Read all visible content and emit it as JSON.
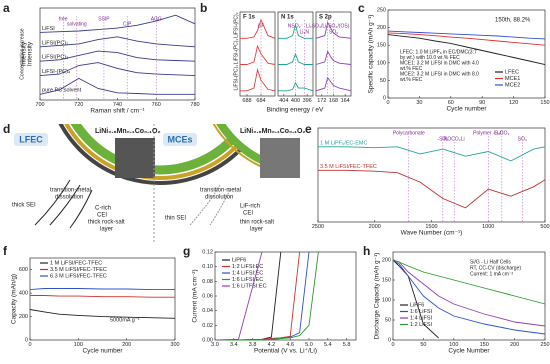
{
  "panels": [
    {
      "label": "a",
      "xlabel": "Raman shift / cm⁻¹",
      "ylabel": "Intensity",
      "ylabel2": "Concentration increase",
      "xlim": [
        700,
        780
      ],
      "xticks": [
        700,
        720,
        740,
        760,
        780
      ],
      "ylim": [
        0,
        6.4
      ],
      "x": [
        700,
        710,
        720,
        730,
        740,
        750,
        760,
        770,
        780
      ],
      "series": [
        {
          "name": "LiFSI",
          "color": "#3a3a8c",
          "values": [
            4.7,
            4.75,
            4.8,
            4.9,
            5.0,
            5.2,
            5.5,
            5.9,
            5.3
          ]
        },
        {
          "name": "LiFSI(PC)₂",
          "color": "#3a3a8c",
          "values": [
            3.7,
            3.8,
            3.9,
            4.2,
            4.4,
            4.1,
            3.9,
            3.8,
            3.7
          ]
        },
        {
          "name": "LiFSI(PC)₃",
          "color": "#3a3a8c",
          "values": [
            2.7,
            2.8,
            3.1,
            3.4,
            3.3,
            2.95,
            2.8,
            2.75,
            2.7
          ]
        },
        {
          "name": "LiFSI-(PC)₄",
          "color": "#3a3a8c",
          "values": [
            1.7,
            1.8,
            2.4,
            2.6,
            2.2,
            1.9,
            1.8,
            1.75,
            1.7
          ]
        },
        {
          "name": "pure PC solvent",
          "color": "#3a3a8c",
          "values": [
            0.4,
            0.7,
            1.5,
            0.8,
            0.5,
            0.45,
            0.4,
            0.4,
            0.4
          ]
        }
      ],
      "annotations": [
        {
          "text": "free",
          "x": 712
        },
        {
          "text": "solvating",
          "x": 719
        },
        {
          "text": "SSIP",
          "x": 733
        },
        {
          "text": "CIP",
          "x": 745
        },
        {
          "text": "AGG",
          "x": 760
        }
      ]
    },
    {
      "label": "b",
      "xlabel": "Binding energy / eV",
      "rows": [
        "LiFSI-(PC)₂",
        "LiFSI-(PC)₃",
        "LiFSI-(PC)₄"
      ],
      "plots": [
        {
          "title": "F 1s",
          "xlim": [
            690,
            680
          ],
          "xticks": [
            688,
            684
          ],
          "ylim": [
            0,
            3.2
          ],
          "x": [
            690,
            688,
            686,
            685,
            684,
            682,
            680
          ],
          "series": [
            {
              "color": "#e04040",
              "values": [
                2.2,
                2.2,
                2.25,
                2.5,
                2.9,
                2.3,
                2.2
              ]
            },
            {
              "color": "#e04040",
              "values": [
                1.2,
                1.2,
                1.3,
                1.9,
                1.6,
                1.25,
                1.2
              ]
            },
            {
              "color": "#e04040",
              "values": [
                0.2,
                0.2,
                0.3,
                1.0,
                0.6,
                0.25,
                0.2
              ]
            }
          ],
          "annotations": [
            {
              "text": "LiF",
              "x": 684
            }
          ]
        },
        {
          "title": "N 1s",
          "xlim": [
            406,
            394
          ],
          "xticks": [
            404,
            400,
            396
          ],
          "ylim": [
            0,
            3.2
          ],
          "x": [
            406,
            403,
            401,
            400,
            399,
            397,
            394
          ],
          "series": [
            {
              "color": "#20a090",
              "values": [
                2.2,
                2.2,
                2.3,
                2.7,
                2.3,
                2.2,
                2.2
              ]
            },
            {
              "color": "#20a090",
              "values": [
                1.2,
                1.2,
                1.3,
                1.6,
                1.3,
                1.2,
                1.2
              ]
            },
            {
              "color": "#20a090",
              "values": [
                0.2,
                0.2,
                0.25,
                0.5,
                0.3,
                0.3,
                0.2
              ]
            }
          ],
          "annotations": [
            {
              "text": "NSO₂⁻",
              "x": 400
            },
            {
              "text": "Li₃N",
              "x": 397
            }
          ]
        },
        {
          "title": "S 2p",
          "xlim": [
            174,
            162
          ],
          "xticks": [
            172,
            168,
            164
          ],
          "ylim": [
            0,
            3.2
          ],
          "x": [
            174,
            171,
            170,
            169,
            168,
            166,
            162
          ],
          "series": [
            {
              "color": "#9040b0",
              "values": [
                2.2,
                2.3,
                2.8,
                2.6,
                2.4,
                2.25,
                2.2
              ]
            },
            {
              "color": "#9040b0",
              "values": [
                1.2,
                1.3,
                1.7,
                1.5,
                1.35,
                1.25,
                1.2
              ]
            },
            {
              "color": "#9040b0",
              "values": [
                0.2,
                0.3,
                0.7,
                0.55,
                0.4,
                0.3,
                0.2
              ]
            }
          ],
          "annotations": [
            {
              "text": "Li₂SO₃/Li₂SO₄/(OS)",
              "x": 170
            },
            {
              "text": "SO₂",
              "x": 168
            }
          ]
        }
      ]
    },
    {
      "label": "c",
      "xlabel": "Cycle number",
      "ylabel": "Specific capacity (mAh g⁻¹)",
      "xlim": [
        0,
        150
      ],
      "xticks": [
        0,
        30,
        60,
        90,
        120,
        150
      ],
      "ylim": [
        0,
        250
      ],
      "yticks": [
        0,
        50,
        100,
        150,
        200,
        250
      ],
      "x": [
        0,
        15,
        30,
        45,
        60,
        75,
        90,
        105,
        120,
        135,
        150
      ],
      "series": [
        {
          "name": "LFEC",
          "color": "#222222",
          "values": [
            180,
            175,
            170,
            162,
            155,
            145,
            135,
            125,
            115,
            105,
            95
          ]
        },
        {
          "name": "MCE1",
          "color": "#e03030",
          "values": [
            185,
            183,
            180,
            177,
            173,
            170,
            166,
            162,
            158,
            154,
            150
          ]
        },
        {
          "name": "MCE2",
          "color": "#3050d0",
          "values": [
            190,
            188,
            186,
            184,
            182,
            180,
            178,
            176,
            173,
            170,
            168
          ]
        }
      ],
      "notes": [
        "150th, 88.2%",
        "LFEC: 1.0 M LiPF₆ in EC/DMC(3:7",
        "by wt.) with 10.0 wt.% FEC",
        "MCE1: 3.2 M LiFSI in DMC with 4.0",
        "wt.% FEC",
        "MCE2: 3.2 M LiFSI in DMC with 8.0",
        "wt.% FEC"
      ]
    },
    {
      "label": "d",
      "left_title": "LFEC",
      "right_title": "MCEs",
      "cathode": "LiNi₀.₈Mn₀.₁Co₀.₁O₂",
      "left": [
        "transition-metal",
        "dissolution",
        "thick SEI",
        "C-rich",
        "CEI",
        "thick rock-salt",
        "layer"
      ],
      "right": [
        "transition-metal",
        "dissolution",
        "thin SEI",
        "LiF-rich",
        "CEI",
        "thin rock-salt",
        "layer"
      ]
    },
    {
      "label": "e",
      "xlabel": "Wave Number (cm⁻¹)",
      "xlim": [
        2500,
        500
      ],
      "xticks": [
        2500,
        2000,
        1500,
        1000,
        500
      ],
      "ylim": [
        0,
        2
      ],
      "x": [
        2500,
        2250,
        2000,
        1800,
        1600,
        1400,
        1200,
        1000,
        800,
        600,
        500
      ],
      "series": [
        {
          "name": "1 M LiPF₆/EC-EMC",
          "color": "#2aa0a0",
          "values": [
            1.6,
            1.6,
            1.58,
            1.6,
            1.45,
            1.55,
            1.4,
            1.5,
            1.3,
            1.55,
            1.6
          ]
        },
        {
          "name": "3.5 M LiFSI/FEC-TFEC",
          "color": "#c03030",
          "values": [
            1.1,
            1.1,
            1.08,
            1.05,
            0.85,
            0.5,
            0.3,
            0.7,
            0.55,
            0.75,
            0.9
          ]
        }
      ],
      "annotations": [
        {
          "text": "Polycarbonate",
          "x": 1700
        },
        {
          "text": "ROCO₂Li",
          "x": 1300
        },
        {
          "text": "Li₂CO₃",
          "x": 880
        },
        {
          "text": "-SO₂",
          "x": 1400
        },
        {
          "text": "Polymer -S-O",
          "x": 1000
        },
        {
          "text": "SO₃",
          "x": 700
        }
      ]
    },
    {
      "label": "f",
      "xlabel": "Cycle number",
      "ylabel": "Capacity (mAh/g)",
      "xlim": [
        0,
        300
      ],
      "xticks": [
        0,
        100,
        200,
        300
      ],
      "ylim": [
        0,
        700
      ],
      "yticks": [
        0,
        200,
        400,
        600
      ],
      "x": [
        0,
        30,
        60,
        100,
        150,
        200,
        250,
        300
      ],
      "series": [
        {
          "name": "1 M LiFSI/FEC-TFEC",
          "color": "#222222",
          "values": [
            260,
            240,
            220,
            210,
            200,
            195,
            190,
            185
          ]
        },
        {
          "name": "3.5 M LiFSI/FEC-TFEC",
          "color": "#d03030",
          "values": [
            380,
            380,
            375,
            375,
            370,
            370,
            365,
            365
          ]
        },
        {
          "name": "6.3 M LiFSI/FEC-TFEC",
          "color": "#3050d0",
          "values": [
            430,
            440,
            440,
            440,
            435,
            435,
            430,
            430
          ]
        }
      ],
      "notes": [
        "5000mA g⁻¹"
      ]
    },
    {
      "label": "g",
      "xlabel": "Potential (V vs. Li⁺/Li)",
      "ylabel": "Current (mA cm⁻²)",
      "xlim": [
        3.0,
        6.0
      ],
      "xticks": [
        {
          "value": 3.0,
          "label": "3.0"
        },
        3.4,
        3.8,
        4.2,
        4.6,
        {
          "value": 5.0,
          "label": "5.0"
        },
        5.4,
        5.8
      ],
      "ylim": [
        0,
        0.12
      ],
      "yticks": [
        {
          "value": 0,
          "label": "0.00"
        },
        0.02,
        0.04,
        0.06,
        0.08,
        {
          "value": 0.1,
          "label": "0.10"
        },
        0.12
      ],
      "x": [
        3.0,
        3.5,
        4.0,
        4.2,
        4.4,
        4.6,
        4.8,
        5.0,
        5.2,
        5.5,
        6.0
      ],
      "series": [
        {
          "name": "LiPF6",
          "color": "#222222",
          "values": [
            0,
            0,
            0.001,
            0.004,
            0.12,
            null,
            null,
            null,
            null,
            null,
            null
          ]
        },
        {
          "name": "1:2 LiFSI:EC",
          "color": "#d03030",
          "values": [
            0,
            0,
            0.001,
            0.002,
            0.003,
            0.005,
            0.12,
            null,
            null,
            null,
            null
          ]
        },
        {
          "name": "1:4 LiFSI:EC",
          "color": "#3050d0",
          "values": [
            0,
            0,
            0,
            0.001,
            0.002,
            0.004,
            0.01,
            0.12,
            null,
            null,
            null
          ]
        },
        {
          "name": "1:6 LiFSI:EC",
          "color": "#2a9a2a",
          "values": [
            0,
            0,
            0,
            0.001,
            0.002,
            0.003,
            0.006,
            0.02,
            0.12,
            null,
            null
          ]
        },
        {
          "name": "1:6 LiTFSI:EC",
          "color": "#9040b0",
          "values": [
            0,
            0.001,
            0.12,
            null,
            null,
            null,
            null,
            null,
            null,
            null,
            null
          ]
        }
      ]
    },
    {
      "label": "h",
      "xlabel": "Cycle Number",
      "ylabel": "Discharge Capacity (mAh g⁻¹)",
      "xlim": [
        0,
        250
      ],
      "xticks": [
        0,
        50,
        100,
        150,
        200,
        250
      ],
      "ylim": [
        0,
        220
      ],
      "yticks": [
        0,
        50,
        100,
        150,
        200
      ],
      "x": [
        0,
        10,
        25,
        50,
        75,
        100,
        150,
        200,
        250
      ],
      "series": [
        {
          "name": "LiPF6",
          "color": "#222222",
          "values": [
            200,
            185,
            160,
            40,
            5,
            null,
            null,
            null,
            null
          ]
        },
        {
          "name": "1:6 LiFSI",
          "color": "#3050d0",
          "values": [
            200,
            190,
            160,
            110,
            80,
            60,
            40,
            25,
            15
          ]
        },
        {
          "name": "1:4 LiFSI",
          "color": "#9040b0",
          "values": [
            200,
            195,
            170,
            140,
            110,
            90,
            65,
            45,
            35
          ]
        },
        {
          "name": "1:2 LiFSI",
          "color": "#2a9a2a",
          "values": [
            200,
            195,
            185,
            170,
            160,
            150,
            130,
            110,
            90
          ]
        }
      ],
      "notes": [
        "Si/G - Li Half Cells",
        "RT, CC-CV (discharge)",
        "Current: 1 mA cm⁻²"
      ]
    }
  ]
}
